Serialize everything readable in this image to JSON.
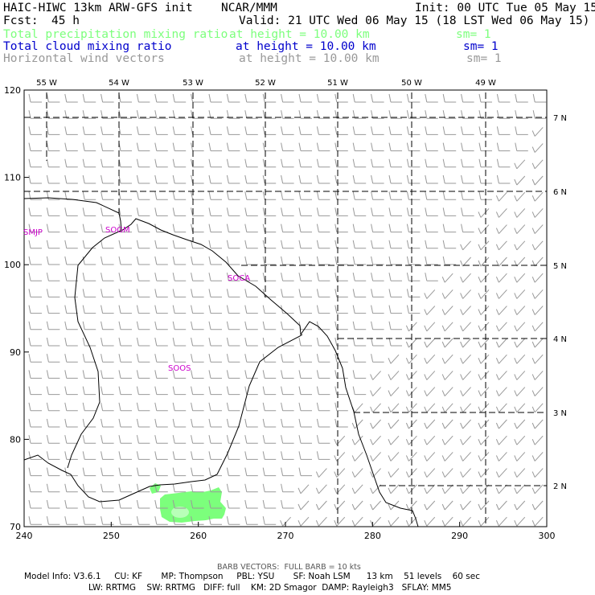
{
  "header": {
    "model_title": "HAIC-HIWC 13km ARW-GFS init",
    "org": "NCAR/MMM",
    "init": "Init: 00 UTC Tue 05 May 15",
    "fcst_label": "Fcst:",
    "fcst_value": "45 h",
    "valid": "Valid: 21 UTC Wed 06 May 15 (18 LST Wed 06 May 15)",
    "fields": [
      {
        "name": "Total precipitation mixing ratio",
        "height": "at height = 10.00 km",
        "sm": "sm= 1",
        "color": "#7cff7c"
      },
      {
        "name": "Total cloud mixing ratio",
        "height": "at height = 10.00 km",
        "sm": "sm= 1",
        "color": "#0000cc"
      },
      {
        "name": "Horizontal wind vectors",
        "height": "at height = 10.00 km",
        "sm": "sm= 1",
        "color": "#999999"
      }
    ]
  },
  "chart_data": {
    "type": "map",
    "x_ticks": [
      "240",
      "250",
      "260",
      "270",
      "280",
      "290",
      "300"
    ],
    "y_ticks": [
      "70",
      "80",
      "90",
      "100",
      "110",
      "120"
    ],
    "xlim": [
      240,
      300
    ],
    "ylim": [
      70,
      120
    ],
    "lon_labels": [
      "55 W",
      "54 W",
      "53 W",
      "52 W",
      "51 W",
      "50 W",
      "49 W"
    ],
    "lat_labels": [
      "2 N",
      "3 N",
      "4 N",
      "5 N",
      "6 N",
      "7 N"
    ],
    "stations": [
      "SMJP",
      "SOGM",
      "SOCA",
      "SOOS"
    ],
    "wind_barbs": "full barb = 10 kts",
    "colors": {
      "precip": "#7cff7c",
      "precip_inner": "#b8ffb8",
      "coast": "#000000",
      "barbs": "#999999"
    }
  },
  "footer": {
    "barb_note": "BARB VECTORS:  FULL BARB = 10 kts",
    "line1": "Model Info: V3.6.1     CU: KF       MP: Thompson     PBL: YSU       SF: Noah LSM      13 km    51 levels    60 sec",
    "line2": "LW: RRTMG    SW: RRTMG   DIFF: full    KM: 2D Smagor  DAMP: Rayleigh3   SFLAY: MM5"
  }
}
